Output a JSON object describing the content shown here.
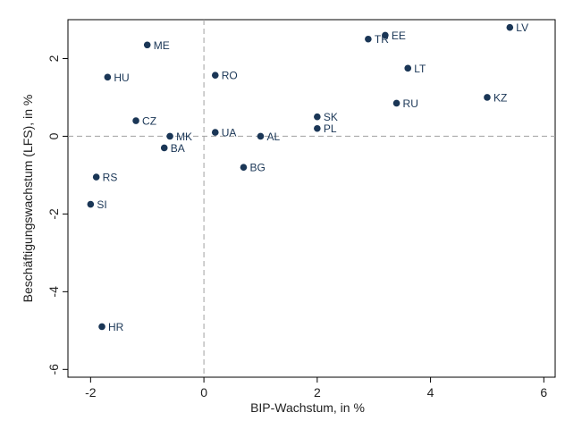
{
  "chart_data": {
    "type": "scatter",
    "xlabel": "BIP-Wachstum, in %",
    "ylabel": "Beschäftigungswachstum (LFS), in %",
    "xlim": [
      -2.4,
      6.2
    ],
    "ylim": [
      -6.2,
      3.0
    ],
    "xticks": [
      -2,
      0,
      2,
      4,
      6
    ],
    "yticks": [
      -6,
      -4,
      -2,
      0,
      2
    ],
    "xtick_labels": [
      "-2",
      "0",
      "2",
      "4",
      "6"
    ],
    "ytick_labels": [
      "-6",
      "-4",
      "-2",
      "0",
      "2"
    ],
    "reference_lines": {
      "x": 0,
      "y": 0,
      "style": "dashed"
    },
    "grid": false,
    "marker_color": "#1a3656",
    "points": [
      {
        "label": "LV",
        "x": 5.4,
        "y": 2.8
      },
      {
        "label": "EE",
        "x": 3.2,
        "y": 2.6
      },
      {
        "label": "TR",
        "x": 2.9,
        "y": 2.5
      },
      {
        "label": "ME",
        "x": -1.0,
        "y": 2.35
      },
      {
        "label": "LT",
        "x": 3.6,
        "y": 1.75
      },
      {
        "label": "RO",
        "x": 0.2,
        "y": 1.57
      },
      {
        "label": "HU",
        "x": -1.7,
        "y": 1.52
      },
      {
        "label": "KZ",
        "x": 5.0,
        "y": 1.0
      },
      {
        "label": "RU",
        "x": 3.4,
        "y": 0.85
      },
      {
        "label": "SK",
        "x": 2.0,
        "y": 0.5
      },
      {
        "label": "CZ",
        "x": -1.2,
        "y": 0.4
      },
      {
        "label": "PL",
        "x": 2.0,
        "y": 0.2
      },
      {
        "label": "UA",
        "x": 0.2,
        "y": 0.1
      },
      {
        "label": "MK",
        "x": -0.6,
        "y": 0.0
      },
      {
        "label": "AL",
        "x": 1.0,
        "y": 0.0
      },
      {
        "label": "BA",
        "x": -0.7,
        "y": -0.3
      },
      {
        "label": "BG",
        "x": 0.7,
        "y": -0.8
      },
      {
        "label": "RS",
        "x": -1.9,
        "y": -1.05
      },
      {
        "label": "SI",
        "x": -2.0,
        "y": -1.75
      },
      {
        "label": "HR",
        "x": -1.8,
        "y": -4.9
      }
    ]
  }
}
